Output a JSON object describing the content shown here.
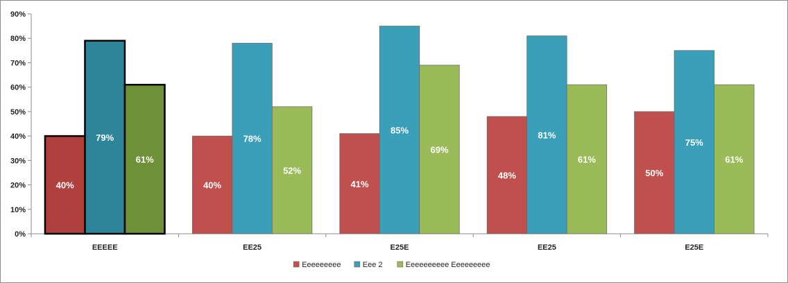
{
  "chart_data": {
    "type": "bar",
    "title": "",
    "xlabel": "",
    "ylabel": "",
    "ylim": [
      0,
      90
    ],
    "ytick_step": 10,
    "ytick_labels": [
      "0%",
      "10%",
      "20%",
      "30%",
      "40%",
      "50%",
      "60%",
      "70%",
      "80%",
      "90%"
    ],
    "grid": false,
    "legend_position": "bottom",
    "categories": [
      "EEEEE",
      "EE25",
      "E25E",
      "EE25",
      "E25E"
    ],
    "highlighted_category_index": 0,
    "series": [
      {
        "name": "Eeeeeeeee",
        "color": "#C0504D",
        "highlight_color": "#B0403E",
        "values": [
          40,
          40,
          41,
          48,
          50
        ],
        "labels": [
          "40%",
          "40%",
          "41%",
          "48%",
          "50%"
        ]
      },
      {
        "name": "Eee 2",
        "color": "#3A9FB8",
        "highlight_color": "#2E859A",
        "values": [
          79,
          78,
          85,
          81,
          75
        ],
        "labels": [
          "79%",
          "78%",
          "85%",
          "81%",
          "75%"
        ]
      },
      {
        "name": "Eeeeeeeeee Eeeeeeeee",
        "color": "#9BBB59",
        "highlight_color": "#6E9039",
        "values": [
          61,
          52,
          69,
          61,
          61
        ],
        "labels": [
          "61%",
          "52%",
          "69%",
          "61%",
          "61%"
        ]
      }
    ]
  }
}
